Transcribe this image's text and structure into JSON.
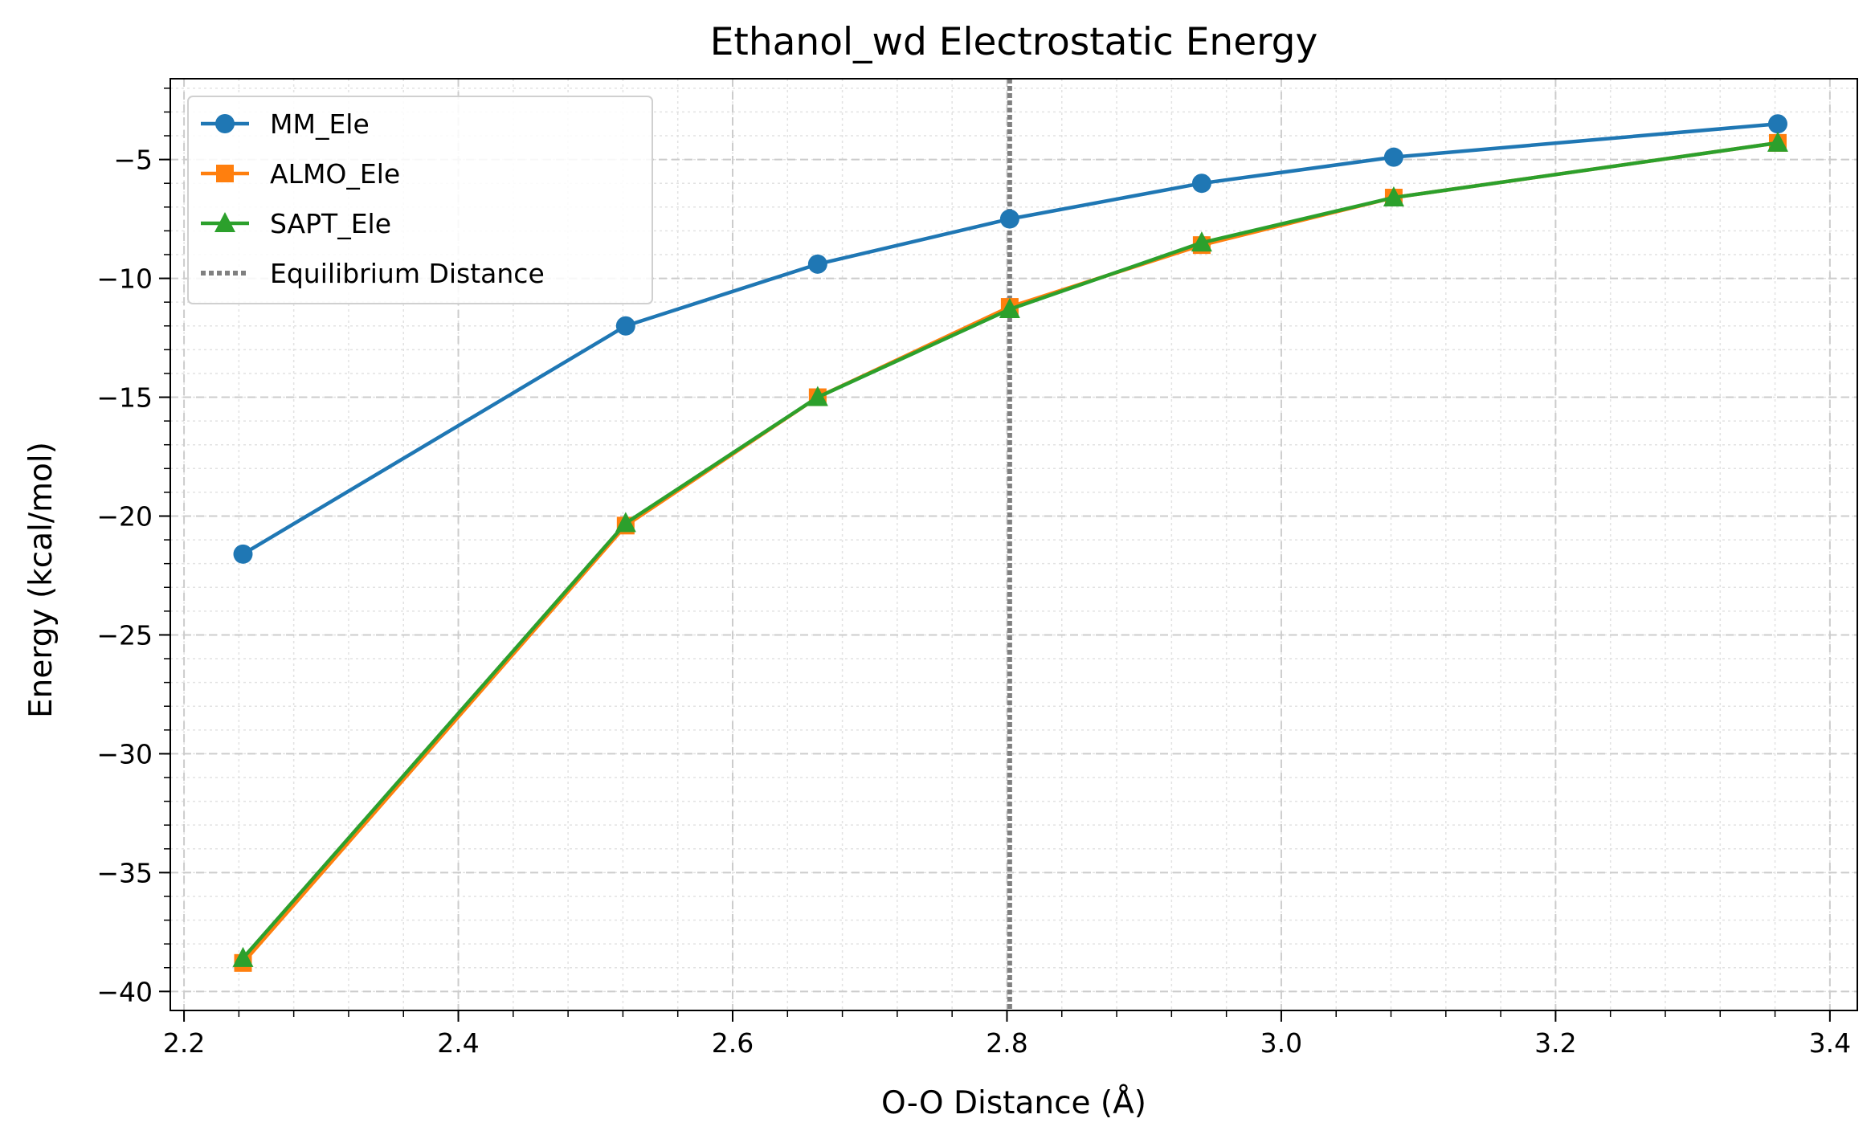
{
  "chart_data": {
    "type": "line",
    "title": "Ethanol_wd Electrostatic Energy",
    "xlabel": "O-O Distance (Å)",
    "ylabel": "Energy (kcal/mol)",
    "xlim": [
      2.19,
      3.42
    ],
    "ylim": [
      -40.8,
      -1.6
    ],
    "xticks": [
      2.2,
      2.4,
      2.6,
      2.8,
      3.0,
      3.2,
      3.4
    ],
    "xtick_labels": [
      "2.2",
      "2.4",
      "2.6",
      "2.8",
      "3.0",
      "3.2",
      "3.4"
    ],
    "yticks": [
      -5,
      -10,
      -15,
      -20,
      -25,
      -30,
      -35,
      -40
    ],
    "ytick_labels": [
      "−5",
      "−10",
      "−15",
      "−20",
      "−25",
      "−30",
      "−35",
      "−40"
    ],
    "grid": true,
    "legend_position": "top-left",
    "x": [
      2.243,
      2.522,
      2.662,
      2.802,
      2.942,
      3.082,
      3.362
    ],
    "series": [
      {
        "name": "MM_Ele",
        "marker": "circle",
        "color": "#1f77b4",
        "values": [
          -21.6,
          -12.0,
          -9.4,
          -7.5,
          -6.0,
          -4.9,
          -3.5
        ]
      },
      {
        "name": "ALMO_Ele",
        "marker": "square",
        "color": "#ff7f0e",
        "values": [
          -38.8,
          -20.4,
          -15.0,
          -11.2,
          -8.6,
          -6.6,
          -4.3
        ]
      },
      {
        "name": "SAPT_Ele",
        "marker": "triangle",
        "color": "#2ca02c",
        "values": [
          -38.6,
          -20.3,
          -15.0,
          -11.3,
          -8.5,
          -6.6,
          -4.3
        ]
      }
    ],
    "vline": {
      "name": "Equilibrium Distance",
      "x": 2.802,
      "color": "#808080",
      "style": "dotted"
    }
  }
}
